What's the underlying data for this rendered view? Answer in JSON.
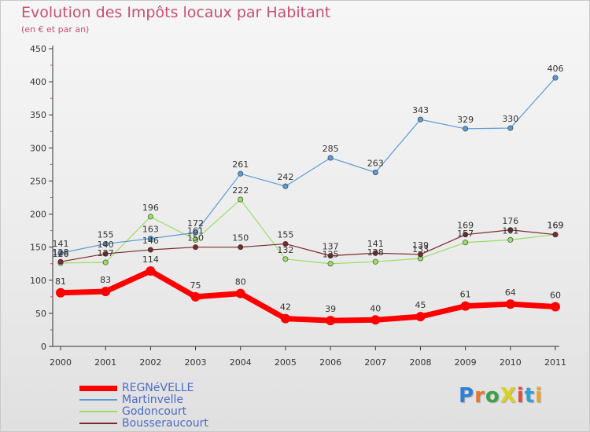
{
  "title": "Evolution des Impôts locaux par Habitant",
  "subtitle": "(en € et par an)",
  "logo": "ProXiti",
  "chart_data": {
    "type": "line",
    "title": "Evolution des Impôts locaux par Habitant",
    "subtitle": "(en € et par an)",
    "x": [
      2000,
      2001,
      2002,
      2003,
      2004,
      2005,
      2006,
      2007,
      2008,
      2009,
      2010,
      2011
    ],
    "ylim": [
      0,
      450
    ],
    "yticks": [
      0,
      50,
      100,
      150,
      200,
      250,
      300,
      350,
      400,
      450
    ],
    "grid": false,
    "legend_position": "bottom-left",
    "series": [
      {
        "name": "REGNéVELLE",
        "color": "#ff0000",
        "values": [
          81,
          83,
          114,
          75,
          80,
          42,
          39,
          40,
          45,
          61,
          64,
          60
        ]
      },
      {
        "name": "Martinvelle",
        "color": "#5b9bd5",
        "values": [
          141,
          155,
          163,
          172,
          261,
          242,
          285,
          263,
          343,
          329,
          330,
          406
        ]
      },
      {
        "name": "Godoncourt",
        "color": "#99dd66",
        "values": [
          126,
          127,
          196,
          161,
          222,
          132,
          125,
          128,
          133,
          157,
          161,
          169
        ]
      },
      {
        "name": "Bousseraucourt",
        "color": "#7a2a2a",
        "values": [
          128,
          140,
          146,
          150,
          150,
          155,
          137,
          141,
          139,
          169,
          176,
          169
        ]
      }
    ]
  }
}
